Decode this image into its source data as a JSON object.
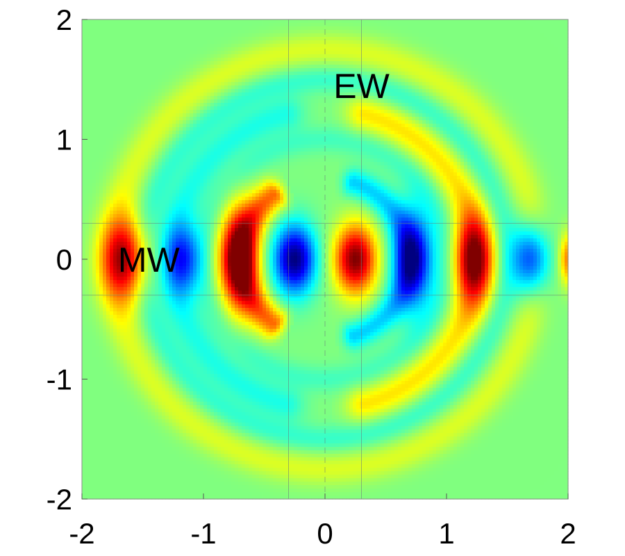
{
  "chart_data": {
    "type": "heatmap",
    "title": "",
    "xlabel": "",
    "ylabel": "",
    "xlim": [
      -2,
      2
    ],
    "ylim": [
      -2,
      2
    ],
    "colormap": "jet",
    "x_ticks": [
      {
        "value": -2,
        "label": "-2"
      },
      {
        "value": -1,
        "label": "-1"
      },
      {
        "value": 0,
        "label": "0"
      },
      {
        "value": 1,
        "label": "1"
      },
      {
        "value": 2,
        "label": "2"
      }
    ],
    "y_ticks": [
      {
        "value": 2,
        "label": "2"
      },
      {
        "value": 1,
        "label": "1"
      },
      {
        "value": 0,
        "label": "0"
      },
      {
        "value": -1,
        "label": "-1"
      },
      {
        "value": -2,
        "label": "-2"
      }
    ],
    "field": {
      "description_units": "normalized field amplitude, -1 (blue) to +1 (red)",
      "background": 0.0,
      "blobs": [
        {
          "x": -1.65,
          "y": 0.0,
          "value": 0.85,
          "sx": 0.13,
          "sy": 0.24
        },
        {
          "x": -1.17,
          "y": 0.0,
          "value": -0.6,
          "sx": 0.1,
          "sy": 0.2
        },
        {
          "x": -0.72,
          "y": 0.0,
          "value": 0.85,
          "sx": 0.11,
          "sy": 0.3
        },
        {
          "x": -0.25,
          "y": 0.0,
          "value": -1.0,
          "sx": 0.12,
          "sy": 0.2
        },
        {
          "x": 0.25,
          "y": 0.0,
          "value": 1.0,
          "sx": 0.12,
          "sy": 0.2
        },
        {
          "x": 0.73,
          "y": 0.0,
          "value": -0.8,
          "sx": 0.11,
          "sy": 0.28
        },
        {
          "x": 1.22,
          "y": 0.0,
          "value": 0.85,
          "sx": 0.11,
          "sy": 0.25
        },
        {
          "x": 1.7,
          "y": 0.0,
          "value": -0.7,
          "sx": 0.11,
          "sy": 0.2
        },
        {
          "x": 2.0,
          "y": 0.0,
          "value": 0.5,
          "sx": 0.05,
          "sy": 0.15
        }
      ],
      "arcs": [
        {
          "cx": 0.0,
          "cy": 0.0,
          "r": 0.68,
          "width": 0.09,
          "value": 0.55,
          "side": "left",
          "theta_min_deg": 128,
          "theta_max_deg": 232
        },
        {
          "cx": 0.0,
          "cy": 0.0,
          "r": 0.68,
          "width": 0.08,
          "value": -0.35,
          "side": "right",
          "theta_min_deg": -70,
          "theta_max_deg": 70
        },
        {
          "cx": 0.0,
          "cy": 0.0,
          "r": 1.25,
          "width": 0.1,
          "value": 0.3,
          "side": "right",
          "theta_min_deg": -75,
          "theta_max_deg": 75
        },
        {
          "cx": 0.0,
          "cy": 0.0,
          "r": 1.25,
          "width": 0.1,
          "value": -0.2,
          "side": "left",
          "theta_min_deg": 105,
          "theta_max_deg": 255
        },
        {
          "cx": 0.0,
          "cy": 0.0,
          "r": 1.75,
          "width": 0.1,
          "value": 0.18,
          "side": "all",
          "theta_min_deg": 0,
          "theta_max_deg": 360
        },
        {
          "cx": 0.0,
          "cy": 0.0,
          "r": 1.5,
          "width": 0.08,
          "value": -0.15,
          "side": "all",
          "theta_min_deg": 0,
          "theta_max_deg": 360
        },
        {
          "cx": 0.0,
          "cy": 0.0,
          "r": 1.0,
          "width": 0.08,
          "value": -0.12,
          "side": "all",
          "theta_min_deg": 0,
          "theta_max_deg": 360
        }
      ]
    },
    "reference_lines": [
      {
        "orientation": "vertical",
        "value": -0.3,
        "style": "solid"
      },
      {
        "orientation": "vertical",
        "value": 0.0,
        "style": "dashed"
      },
      {
        "orientation": "vertical",
        "value": 0.3,
        "style": "solid"
      },
      {
        "orientation": "horizontal",
        "value": 0.3,
        "style": "solid"
      },
      {
        "orientation": "horizontal",
        "value": -0.3,
        "style": "solid"
      }
    ],
    "annotations": [
      {
        "text": "EW",
        "x": 0.3,
        "y": 1.45
      },
      {
        "text": "MW",
        "x": -1.45,
        "y": 0.0
      }
    ]
  }
}
